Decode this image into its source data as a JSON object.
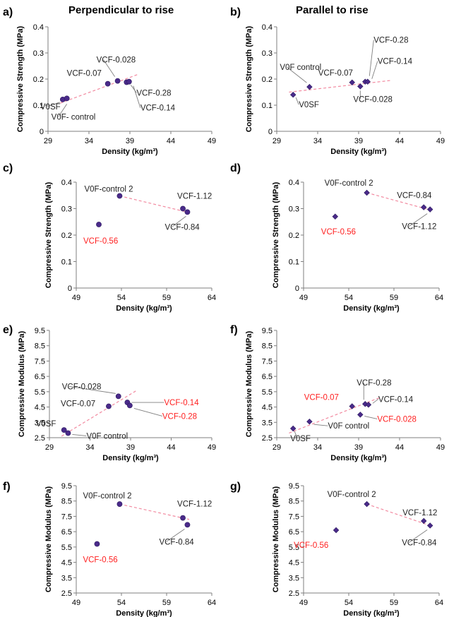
{
  "column_titles": [
    "Perpendicular to rise",
    "Parallel to rise"
  ],
  "colors": {
    "point": "#4a2a8a",
    "trend": "#f28aa0",
    "label_black": "#222222",
    "label_red": "#ff2020",
    "axis": "#7f7f7f",
    "leader": "#7f7f7f"
  },
  "chart_data": [
    {
      "panel": "a)",
      "type": "scatter",
      "xlabel": "Density (kg/m³)",
      "ylabel": "Compressive Strength (MPa)",
      "xlim": [
        29,
        49
      ],
      "ylim": [
        0,
        0.4
      ],
      "xticks": [
        "29",
        "34",
        "39",
        "44",
        "49"
      ],
      "yticks": [
        "0",
        "0.1",
        "0.2",
        "0.3",
        "0.4"
      ],
      "marker": "circle",
      "points": [
        {
          "label": "V0SF",
          "x": 30.8,
          "y": 0.122,
          "color": "black"
        },
        {
          "label": "V0F- control",
          "x": 31.3,
          "y": 0.126,
          "color": "black"
        },
        {
          "label": "VCF-0.07",
          "x": 36.3,
          "y": 0.182,
          "color": "black"
        },
        {
          "label": "VCF-0.028",
          "x": 37.5,
          "y": 0.193,
          "color": "black"
        },
        {
          "label": "VCF-0.28",
          "x": 38.6,
          "y": 0.188,
          "color": "black"
        },
        {
          "label": "VCF-0.14",
          "x": 38.9,
          "y": 0.19,
          "color": "black"
        }
      ],
      "trendline": [
        [
          30.5,
          0.108
        ],
        [
          40.0,
          0.218
        ]
      ]
    },
    {
      "panel": "b)",
      "type": "scatter",
      "xlabel": "Density (kg/m³)",
      "ylabel": "Compressive Strength  (MPa)",
      "xlim": [
        29,
        49
      ],
      "ylim": [
        0,
        0.4
      ],
      "xticks": [
        "29",
        "34",
        "39",
        "44",
        "49"
      ],
      "yticks": [
        "0",
        "0.1",
        "0.2",
        "0.3",
        "0.4"
      ],
      "marker": "diamond",
      "points": [
        {
          "label": "V0SF",
          "x": 31.0,
          "y": 0.14,
          "color": "black"
        },
        {
          "label": "V0F control",
          "x": 33.0,
          "y": 0.17,
          "color": "black"
        },
        {
          "label": "VCF-0.07",
          "x": 38.2,
          "y": 0.187,
          "color": "black"
        },
        {
          "label": "VCF-0.028",
          "x": 39.2,
          "y": 0.172,
          "color": "black"
        },
        {
          "label": "VCF-0.28",
          "x": 39.8,
          "y": 0.19,
          "color": "black"
        },
        {
          "label": "VCF-0.14",
          "x": 40.1,
          "y": 0.19,
          "color": "black"
        }
      ],
      "trendline": [
        [
          30.5,
          0.15
        ],
        [
          43.0,
          0.195
        ]
      ]
    },
    {
      "panel": "c)",
      "type": "scatter",
      "xlabel": "Density (kg/m³)",
      "ylabel": "Compressive Strength (MPa)",
      "xlim": [
        49,
        64
      ],
      "ylim": [
        0,
        0.4
      ],
      "xticks": [
        "49",
        "54",
        "59",
        "64"
      ],
      "yticks": [
        "0",
        "0.1",
        "0.2",
        "0.3",
        "0.4"
      ],
      "marker": "circle",
      "points": [
        {
          "label": "VCF-0.56",
          "x": 51.5,
          "y": 0.24,
          "color": "red"
        },
        {
          "label": "V0F-control 2",
          "x": 53.8,
          "y": 0.348,
          "color": "black"
        },
        {
          "label": "VCF-1.12",
          "x": 60.8,
          "y": 0.3,
          "color": "black"
        },
        {
          "label": "VCF-0.84",
          "x": 61.3,
          "y": 0.287,
          "color": "black"
        }
      ],
      "trendline": [
        [
          53.8,
          0.348
        ],
        [
          61.5,
          0.285
        ]
      ]
    },
    {
      "panel": "d)",
      "type": "scatter",
      "xlabel": "Density (kg/m³)",
      "ylabel": "Compressive Strength (MPa)",
      "xlim": [
        49,
        64
      ],
      "ylim": [
        0,
        0.4
      ],
      "xticks": [
        "49",
        "54",
        "59",
        "64"
      ],
      "yticks": [
        "0",
        "0.1",
        "0.2",
        "0.3",
        "0.4"
      ],
      "marker": "diamond",
      "points": [
        {
          "label": "VCF-0.56",
          "x": 52.5,
          "y": 0.27,
          "color": "red"
        },
        {
          "label": "V0F-control 2",
          "x": 56.0,
          "y": 0.36,
          "color": "black"
        },
        {
          "label": "VCF-0.84",
          "x": 62.3,
          "y": 0.305,
          "color": "black"
        },
        {
          "label": "VCF-1.12",
          "x": 63.0,
          "y": 0.297,
          "color": "black"
        }
      ],
      "trendline": [
        [
          56.0,
          0.36
        ],
        [
          63.0,
          0.295
        ]
      ]
    },
    {
      "panel": "e)",
      "type": "scatter",
      "xlabel": "Density (kg/m³)",
      "ylabel": "Compressive Modulus (MPa)",
      "xlim": [
        29,
        49
      ],
      "ylim": [
        2.5,
        9.5
      ],
      "xticks": [
        "29",
        "34",
        "39",
        "44",
        "49"
      ],
      "yticks": [
        "2.5",
        "3.5",
        "4.5",
        "5.5",
        "6.5",
        "7.5",
        "8.5",
        "9.5"
      ],
      "marker": "circle",
      "points": [
        {
          "label": "V0SF",
          "x": 30.8,
          "y": 3.0,
          "color": "black"
        },
        {
          "label": "V0F control",
          "x": 31.3,
          "y": 2.8,
          "color": "black"
        },
        {
          "label": "VCF-0.07",
          "x": 36.3,
          "y": 4.55,
          "color": "black"
        },
        {
          "label": "VCF-0.028",
          "x": 37.5,
          "y": 5.2,
          "color": "black"
        },
        {
          "label": "VCF-0.14",
          "x": 38.6,
          "y": 4.8,
          "color": "red"
        },
        {
          "label": "VCF-0.28",
          "x": 38.9,
          "y": 4.6,
          "color": "red"
        }
      ],
      "trendline": [
        [
          30.5,
          2.6
        ],
        [
          39.8,
          5.6
        ]
      ]
    },
    {
      "panel": "f)",
      "type": "scatter",
      "xlabel": "Density (kg/m³)",
      "ylabel": "Compressive Modulus (MPa)",
      "xlim": [
        29,
        49
      ],
      "ylim": [
        2.5,
        9.5
      ],
      "xticks": [
        "29",
        "34",
        "39",
        "44",
        "49"
      ],
      "yticks": [
        "2.5",
        "3.5",
        "4.5",
        "5.5",
        "6.5",
        "7.5",
        "8.5",
        "9.5"
      ],
      "marker": "diamond",
      "points": [
        {
          "label": "V0SF",
          "x": 31.0,
          "y": 3.1,
          "color": "black"
        },
        {
          "label": "V0F control",
          "x": 33.0,
          "y": 3.55,
          "color": "black"
        },
        {
          "label": "VCF-0.07",
          "x": 38.2,
          "y": 4.55,
          "color": "red"
        },
        {
          "label": "VCF-0.028",
          "x": 39.2,
          "y": 4.0,
          "color": "red"
        },
        {
          "label": "VCF-0.28",
          "x": 39.8,
          "y": 4.7,
          "color": "black"
        },
        {
          "label": "VCF-0.14",
          "x": 40.2,
          "y": 4.65,
          "color": "black"
        }
      ],
      "trendline": [
        [
          30.5,
          2.8
        ],
        [
          41.5,
          5.1
        ]
      ]
    },
    {
      "panel": "f)",
      "type": "scatter",
      "xlabel": "Density (kg/m³)",
      "ylabel": "Compressive Modulus (MPa)",
      "xlim": [
        49,
        64
      ],
      "ylim": [
        2.5,
        9.5
      ],
      "xticks": [
        "49",
        "54",
        "59",
        "64"
      ],
      "yticks": [
        "2.5",
        "3.5",
        "4.5",
        "5.5",
        "6.5",
        "7.5",
        "8.5",
        "9.5"
      ],
      "marker": "circle",
      "points": [
        {
          "label": "VCF-0.56",
          "x": 51.3,
          "y": 5.7,
          "color": "red"
        },
        {
          "label": "V0F-control 2",
          "x": 53.8,
          "y": 8.3,
          "color": "black"
        },
        {
          "label": "VCF-1.12",
          "x": 60.8,
          "y": 7.4,
          "color": "black"
        },
        {
          "label": "VCF-0.84",
          "x": 61.3,
          "y": 6.95,
          "color": "black"
        }
      ],
      "trendline": [
        [
          53.8,
          8.3
        ],
        [
          61.5,
          7.3
        ]
      ]
    },
    {
      "panel": "g)",
      "type": "scatter",
      "xlabel": "Density (kg/m³)",
      "ylabel": "Compressive Modulus (MPa)",
      "xlim": [
        49,
        64
      ],
      "ylim": [
        2.5,
        9.5
      ],
      "xticks": [
        "49",
        "54",
        "59",
        "64"
      ],
      "yticks": [
        "2.5",
        "3.5",
        "4.5",
        "5.5",
        "6.5",
        "7.5",
        "8.5",
        "9.5"
      ],
      "marker": "diamond",
      "points": [
        {
          "label": "VCF-0.56",
          "x": 52.6,
          "y": 6.6,
          "color": "red"
        },
        {
          "label": "V0F-control 2",
          "x": 56.0,
          "y": 8.3,
          "color": "black"
        },
        {
          "label": "VCF-1.12",
          "x": 62.3,
          "y": 7.2,
          "color": "black"
        },
        {
          "label": "VCF-0.84",
          "x": 63.0,
          "y": 6.9,
          "color": "black"
        }
      ],
      "trendline": [
        [
          56.0,
          8.3
        ],
        [
          63.0,
          6.9
        ]
      ]
    }
  ]
}
